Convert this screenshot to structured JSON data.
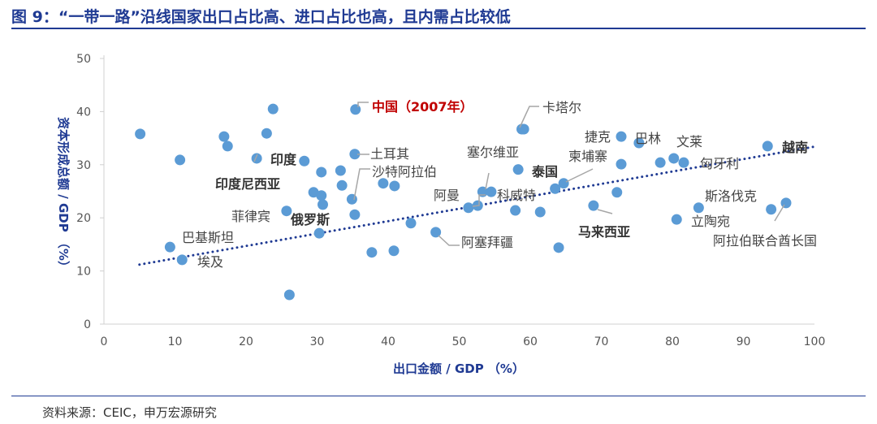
{
  "title": "图 9：“一带一路”沿线国家出口占比高、进口占比也高，且内需占比较低",
  "source": "资料来源：CEIC，申万宏源研究",
  "chart_data": {
    "type": "scatter",
    "title": "图 9：“一带一路”沿线国家出口占比高、进口占比也高，且内需占比较低",
    "xlabel": "出口金额 / GDP （%）",
    "ylabel": "资本形成总额 / GDP （%）",
    "xlim": [
      0,
      100
    ],
    "ylim": [
      0,
      50
    ],
    "xticks": [
      "0",
      "10",
      "20",
      "30",
      "40",
      "50",
      "60",
      "70",
      "80",
      "90",
      "100"
    ],
    "yticks": [
      "0",
      "10",
      "20",
      "30",
      "40",
      "50"
    ],
    "grid": false,
    "point_color": "#5b9bd5",
    "trend_color": "#1f3a93",
    "trendline": [
      [
        5,
        11.2
      ],
      [
        100,
        33.4
      ]
    ],
    "points": [
      [
        5.1,
        35.8
      ],
      [
        10.7,
        30.9
      ],
      [
        9.3,
        14.5
      ],
      [
        11.0,
        12.1
      ],
      [
        16.9,
        35.3
      ],
      [
        17.4,
        33.5
      ],
      [
        21.5,
        31.2
      ],
      [
        22.9,
        35.9
      ],
      [
        23.8,
        40.5
      ],
      [
        28.2,
        30.7
      ],
      [
        30.6,
        28.6
      ],
      [
        33.3,
        28.9
      ],
      [
        33.5,
        26.1
      ],
      [
        29.5,
        24.8
      ],
      [
        30.6,
        24.2
      ],
      [
        30.8,
        22.5
      ],
      [
        25.7,
        21.3
      ],
      [
        30.3,
        17.1
      ],
      [
        35.4,
        40.4
      ],
      [
        35.3,
        32.0
      ],
      [
        34.9,
        23.5
      ],
      [
        35.3,
        20.6
      ],
      [
        39.3,
        26.5
      ],
      [
        40.9,
        26.0
      ],
      [
        43.2,
        19.0
      ],
      [
        37.7,
        13.5
      ],
      [
        40.8,
        13.8
      ],
      [
        26.1,
        5.5
      ],
      [
        46.7,
        17.3
      ],
      [
        51.3,
        21.9
      ],
      [
        52.6,
        22.3
      ],
      [
        53.3,
        24.9
      ],
      [
        54.5,
        24.9
      ],
      [
        58.3,
        29.1
      ],
      [
        57.9,
        21.4
      ],
      [
        61.4,
        21.1
      ],
      [
        58.8,
        36.7
      ],
      [
        59.1,
        36.7
      ],
      [
        63.5,
        25.5
      ],
      [
        64.7,
        26.5
      ],
      [
        64.0,
        14.4
      ],
      [
        68.9,
        22.3
      ],
      [
        72.2,
        24.8
      ],
      [
        72.8,
        35.3
      ],
      [
        72.8,
        30.1
      ],
      [
        75.3,
        34.1
      ],
      [
        78.3,
        30.4
      ],
      [
        80.2,
        31.2
      ],
      [
        81.6,
        30.4
      ],
      [
        80.6,
        19.7
      ],
      [
        83.7,
        21.9
      ],
      [
        93.4,
        33.5
      ],
      [
        93.9,
        21.6
      ],
      [
        96.0,
        22.8
      ]
    ],
    "annotations": [
      {
        "text": "中国（2007年）",
        "style": "red"
      },
      {
        "text": "卡塔尔",
        "style": "normal"
      },
      {
        "text": "捷克",
        "style": "normal"
      },
      {
        "text": "巴林",
        "style": "normal"
      },
      {
        "text": "文莱",
        "style": "normal"
      },
      {
        "text": "越南",
        "style": "bold"
      },
      {
        "text": "印度",
        "style": "bold"
      },
      {
        "text": "土耳其",
        "style": "normal"
      },
      {
        "text": "塞尔维亚",
        "style": "normal"
      },
      {
        "text": "柬埔寨",
        "style": "normal"
      },
      {
        "text": "匈牙利",
        "style": "normal"
      },
      {
        "text": "沙特阿拉伯",
        "style": "normal"
      },
      {
        "text": "泰国",
        "style": "bold"
      },
      {
        "text": "印度尼西亚",
        "style": "bold"
      },
      {
        "text": "阿曼",
        "style": "normal"
      },
      {
        "text": "科威特",
        "style": "normal"
      },
      {
        "text": "斯洛伐克",
        "style": "normal"
      },
      {
        "text": "菲律宾",
        "style": "normal"
      },
      {
        "text": "俄罗斯",
        "style": "bold"
      },
      {
        "text": "立陶宛",
        "style": "normal"
      },
      {
        "text": "马来西亚",
        "style": "bold"
      },
      {
        "text": "巴基斯坦",
        "style": "normal"
      },
      {
        "text": "阿塞拜疆",
        "style": "normal"
      },
      {
        "text": "阿拉伯联合酋长国",
        "style": "normal"
      },
      {
        "text": "埃及",
        "style": "normal"
      }
    ]
  }
}
